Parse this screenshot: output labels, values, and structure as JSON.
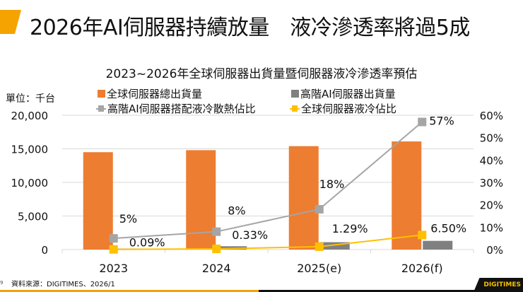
{
  "header": {
    "title": "2026年AI伺服器持續放量　液冷滲透率將過5成"
  },
  "chart_data": {
    "type": "bar+line",
    "title": "2023~2026年全球伺服器出貨量暨伺服器液冷滲透率預估",
    "unit_label": "單位：千台",
    "categories": [
      "2023",
      "2024",
      "2025(e)",
      "2026(f)"
    ],
    "y_left": {
      "range": [
        0,
        20000
      ],
      "ticks": [
        "0",
        "5,000",
        "10,000",
        "15,000",
        "20,000"
      ],
      "tick_values": [
        0,
        5000,
        10000,
        15000,
        20000
      ]
    },
    "y_right": {
      "range": [
        0,
        60
      ],
      "ticks": [
        "0%",
        "10%",
        "20%",
        "30%",
        "40%",
        "50%",
        "60%"
      ],
      "tick_values": [
        0,
        10,
        20,
        30,
        40,
        50,
        60
      ]
    },
    "grid": true,
    "legend_placement": "top",
    "series": [
      {
        "name": "全球伺服器總出貨量",
        "type": "bar",
        "axis": "left",
        "color": "#ed7d31",
        "values": [
          14500,
          14800,
          15400,
          16100
        ]
      },
      {
        "name": "高階AI伺服器出貨量",
        "type": "bar",
        "axis": "left",
        "color": "#808080",
        "values": [
          150,
          500,
          1100,
          1300
        ]
      },
      {
        "name": "高階AI伺服器搭配液冷散熱佔比",
        "type": "line",
        "axis": "right",
        "color": "#a5a5a5",
        "values": [
          5,
          8,
          18,
          57
        ],
        "labels": [
          "5%",
          "8%",
          "18%",
          "57%"
        ]
      },
      {
        "name": "全球伺服器液冷佔比",
        "type": "line",
        "axis": "right",
        "color": "#ffc000",
        "values": [
          0.09,
          0.33,
          1.29,
          6.5
        ],
        "labels": [
          "0.09%",
          "0.33%",
          "1.29%",
          "6.50%"
        ]
      }
    ]
  },
  "footer": {
    "page": "9",
    "source": "資料來源：DIGITIMES、2026/1",
    "logo": "DIGITIMES"
  }
}
